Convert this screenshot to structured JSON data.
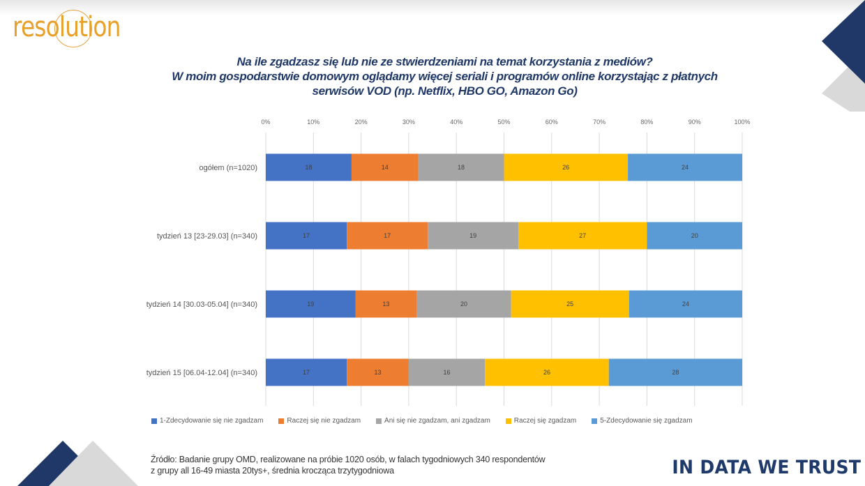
{
  "brand": {
    "logo_text": "resolution",
    "tagline": "IN DATA WE TRUST"
  },
  "title_lines": [
    "Na ile zgadzasz się lub nie ze stwierdzeniami na temat korzystania z mediów?",
    "W moim gospodarstwie domowym oglądamy więcej seriali i programów online korzystając z płatnych",
    "serwisów VOD (np. Netflix, HBO GO, Amazon Go)"
  ],
  "source_lines": [
    "Źródło: Badanie grupy OMD, realizowane na próbie 1020 osób, w falach tygodniowych  340 respondentów",
    "z grupy all 16-49 miasta 20tys+, średnia krocząca trzytygodniowa"
  ],
  "colors": {
    "navy": "#1f3868",
    "gray_shape": "#d9d9d9",
    "logo_orange": "#e7a02a"
  },
  "chart_data": {
    "type": "bar",
    "orientation": "horizontal",
    "stacked": "percent",
    "title": "Na ile zgadzasz się lub nie ze stwierdzeniami na temat korzystania z mediów? W moim gospodarstwie domowym oglądamy więcej seriali i programów online korzystając z płatnych serwisów VOD (np. Netflix, HBO GO, Amazon Go)",
    "xlabel": "",
    "ylabel": "",
    "xlim": [
      0,
      100
    ],
    "x_ticks": [
      "0%",
      "10%",
      "20%",
      "30%",
      "40%",
      "50%",
      "60%",
      "70%",
      "80%",
      "90%",
      "100%"
    ],
    "x_axis_position": "top",
    "grid": true,
    "legend_position": "bottom",
    "categories": [
      "ogółem (n=1020)",
      "tydzień 13 [23-29.03] (n=340)",
      "tydzień 14 [30.03-05.04] (n=340)",
      "tydzień 15 [06.04-12.04] (n=340)"
    ],
    "series": [
      {
        "name": "1-Zdecydowanie się nie zgadzam",
        "color": "#4472c4",
        "values": [
          18,
          17,
          19,
          17
        ]
      },
      {
        "name": "Raczej się nie zgadzam",
        "color": "#ed7d31",
        "values": [
          14,
          17,
          13,
          13
        ]
      },
      {
        "name": "Ani się nie zgadzam, ani zgadzam",
        "color": "#a5a5a5",
        "values": [
          18,
          19,
          20,
          16
        ]
      },
      {
        "name": "Raczej się zgadzam",
        "color": "#ffc000",
        "values": [
          26,
          27,
          25,
          26
        ]
      },
      {
        "name": "5-Zdecydowanie się zgadzam",
        "color": "#5b9bd5",
        "values": [
          24,
          20,
          24,
          28
        ]
      }
    ]
  }
}
